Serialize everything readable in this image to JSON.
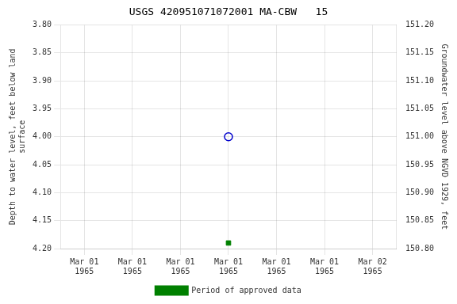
{
  "chart_data": {
    "type": "scatter",
    "title": "USGS 420951071072001 MA-CBW   15",
    "y_label": "Depth to water level, feet below land\nsurface",
    "y2_label": "Groundwater level above NGVD 1929, feet",
    "categories": [
      "Mar 01\n1965",
      "Mar 01\n1965",
      "Mar 01\n1965",
      "Mar 01\n1965",
      "Mar 01\n1965",
      "Mar 01\n1965",
      "Mar 02\n1965"
    ],
    "series": [
      {
        "color": "#0000cc",
        "marker": "open circle",
        "values": [
          null,
          null,
          null,
          4.0,
          null,
          null,
          null
        ]
      },
      {
        "name": "Period of approved data",
        "color": "#008000",
        "marker": "square",
        "values": [
          null,
          null,
          null,
          4.19,
          null,
          null,
          null
        ]
      }
    ],
    "ylim": [
      4.2,
      3.8
    ],
    "yticks": [
      {
        "value": 3.8,
        "label": "3.80"
      },
      {
        "value": 3.85,
        "label": "3.85"
      },
      {
        "value": 3.9,
        "label": "3.90"
      },
      {
        "value": 3.95,
        "label": "3.95"
      },
      {
        "value": 4.0,
        "label": "4.00"
      },
      {
        "value": 4.05,
        "label": "4.05"
      },
      {
        "value": 4.1,
        "label": "4.10"
      },
      {
        "value": 4.15,
        "label": "4.15"
      },
      {
        "value": 4.2,
        "label": "4.20"
      }
    ],
    "y2lim": [
      150.8,
      151.2
    ],
    "y2ticks": [
      {
        "value": 151.2,
        "label": "151.20"
      },
      {
        "value": 151.15,
        "label": "151.15"
      },
      {
        "value": 151.1,
        "label": "151.10"
      },
      {
        "value": 151.05,
        "label": "151.05"
      },
      {
        "value": 151.0,
        "label": "151.00"
      },
      {
        "value": 150.95,
        "label": "150.95"
      },
      {
        "value": 150.9,
        "label": "150.90"
      },
      {
        "value": 150.85,
        "label": "150.85"
      },
      {
        "value": 150.8,
        "label": "150.80"
      }
    ],
    "grid": true,
    "legend": "bottom"
  }
}
